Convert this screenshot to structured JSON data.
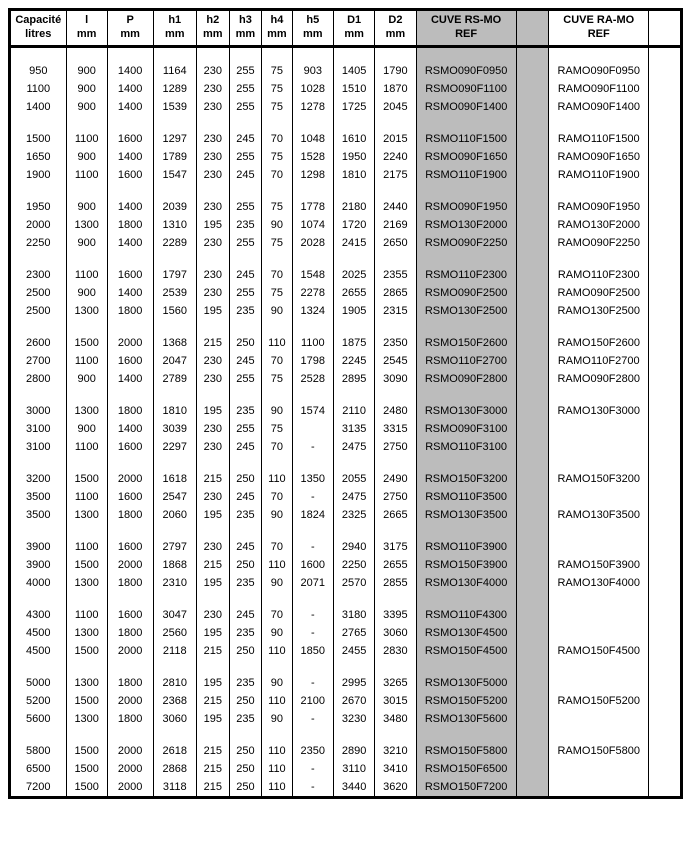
{
  "headers": [
    {
      "l1": "Capacité",
      "l2": "litres"
    },
    {
      "l1": "l",
      "l2": "mm"
    },
    {
      "l1": "P",
      "l2": "mm"
    },
    {
      "l1": "h1",
      "l2": "mm"
    },
    {
      "l1": "h2",
      "l2": "mm"
    },
    {
      "l1": "h3",
      "l2": "mm"
    },
    {
      "l1": "h4",
      "l2": "mm"
    },
    {
      "l1": "h5",
      "l2": "mm"
    },
    {
      "l1": "D1",
      "l2": "mm"
    },
    {
      "l1": "D2",
      "l2": "mm"
    },
    {
      "l1": "CUVE RS-MO",
      "l2": "REF"
    },
    {
      "l1": "",
      "l2": ""
    },
    {
      "l1": "CUVE RA-MO",
      "l2": "REF"
    },
    {
      "l1": "",
      "l2": ""
    }
  ],
  "groups": [
    [
      [
        "950",
        "900",
        "1400",
        "1164",
        "230",
        "255",
        "75",
        "903",
        "1405",
        "1790",
        "RSMO090F0950",
        "",
        "RAMO090F0950",
        ""
      ],
      [
        "1100",
        "900",
        "1400",
        "1289",
        "230",
        "255",
        "75",
        "1028",
        "1510",
        "1870",
        "RSMO090F1100",
        "",
        "RAMO090F1100",
        ""
      ],
      [
        "1400",
        "900",
        "1400",
        "1539",
        "230",
        "255",
        "75",
        "1278",
        "1725",
        "2045",
        "RSMO090F1400",
        "",
        "RAMO090F1400",
        ""
      ]
    ],
    [
      [
        "1500",
        "1100",
        "1600",
        "1297",
        "230",
        "245",
        "70",
        "1048",
        "1610",
        "2015",
        "RSMO110F1500",
        "",
        "RAMO110F1500",
        ""
      ],
      [
        "1650",
        "900",
        "1400",
        "1789",
        "230",
        "255",
        "75",
        "1528",
        "1950",
        "2240",
        "RSMO090F1650",
        "",
        "RAMO090F1650",
        ""
      ],
      [
        "1900",
        "1100",
        "1600",
        "1547",
        "230",
        "245",
        "70",
        "1298",
        "1810",
        "2175",
        "RSMO110F1900",
        "",
        "RAMO110F1900",
        ""
      ]
    ],
    [
      [
        "1950",
        "900",
        "1400",
        "2039",
        "230",
        "255",
        "75",
        "1778",
        "2180",
        "2440",
        "RSMO090F1950",
        "",
        "RAMO090F1950",
        ""
      ],
      [
        "2000",
        "1300",
        "1800",
        "1310",
        "195",
        "235",
        "90",
        "1074",
        "1720",
        "2169",
        "RSMO130F2000",
        "",
        "RAMO130F2000",
        ""
      ],
      [
        "2250",
        "900",
        "1400",
        "2289",
        "230",
        "255",
        "75",
        "2028",
        "2415",
        "2650",
        "RSMO090F2250",
        "",
        "RAMO090F2250",
        ""
      ]
    ],
    [
      [
        "2300",
        "1100",
        "1600",
        "1797",
        "230",
        "245",
        "70",
        "1548",
        "2025",
        "2355",
        "RSMO110F2300",
        "",
        "RAMO110F2300",
        ""
      ],
      [
        "2500",
        "900",
        "1400",
        "2539",
        "230",
        "255",
        "75",
        "2278",
        "2655",
        "2865",
        "RSMO090F2500",
        "",
        "RAMO090F2500",
        ""
      ],
      [
        "2500",
        "1300",
        "1800",
        "1560",
        "195",
        "235",
        "90",
        "1324",
        "1905",
        "2315",
        "RSMO130F2500",
        "",
        "RAMO130F2500",
        ""
      ]
    ],
    [
      [
        "2600",
        "1500",
        "2000",
        "1368",
        "215",
        "250",
        "110",
        "1100",
        "1875",
        "2350",
        "RSMO150F2600",
        "",
        "RAMO150F2600",
        ""
      ],
      [
        "2700",
        "1100",
        "1600",
        "2047",
        "230",
        "245",
        "70",
        "1798",
        "2245",
        "2545",
        "RSMO110F2700",
        "",
        "RAMO110F2700",
        ""
      ],
      [
        "2800",
        "900",
        "1400",
        "2789",
        "230",
        "255",
        "75",
        "2528",
        "2895",
        "3090",
        "RSMO090F2800",
        "",
        "RAMO090F2800",
        ""
      ]
    ],
    [
      [
        "3000",
        "1300",
        "1800",
        "1810",
        "195",
        "235",
        "90",
        "1574",
        "2110",
        "2480",
        "RSMO130F3000",
        "",
        "RAMO130F3000",
        ""
      ],
      [
        "3100",
        "900",
        "1400",
        "3039",
        "230",
        "255",
        "75",
        "",
        "3135",
        "3315",
        "RSMO090F3100",
        "",
        "",
        ""
      ],
      [
        "3100",
        "1100",
        "1600",
        "2297",
        "230",
        "245",
        "70",
        "-",
        "2475",
        "2750",
        "RSMO110F3100",
        "",
        "",
        ""
      ]
    ],
    [
      [
        "3200",
        "1500",
        "2000",
        "1618",
        "215",
        "250",
        "110",
        "1350",
        "2055",
        "2490",
        "RSMO150F3200",
        "",
        "RAMO150F3200",
        ""
      ],
      [
        "3500",
        "1100",
        "1600",
        "2547",
        "230",
        "245",
        "70",
        "-",
        "2475",
        "2750",
        "RSMO110F3500",
        "",
        "",
        ""
      ],
      [
        "3500",
        "1300",
        "1800",
        "2060",
        "195",
        "235",
        "90",
        "1824",
        "2325",
        "2665",
        "RSMO130F3500",
        "",
        "RAMO130F3500",
        ""
      ]
    ],
    [
      [
        "3900",
        "1100",
        "1600",
        "2797",
        "230",
        "245",
        "70",
        "-",
        "2940",
        "3175",
        "RSMO110F3900",
        "",
        "",
        ""
      ],
      [
        "3900",
        "1500",
        "2000",
        "1868",
        "215",
        "250",
        "110",
        "1600",
        "2250",
        "2655",
        "RSMO150F3900",
        "",
        "RAMO150F3900",
        ""
      ],
      [
        "4000",
        "1300",
        "1800",
        "2310",
        "195",
        "235",
        "90",
        "2071",
        "2570",
        "2855",
        "RSMO130F4000",
        "",
        "RAMO130F4000",
        ""
      ]
    ],
    [
      [
        "4300",
        "1100",
        "1600",
        "3047",
        "230",
        "245",
        "70",
        "-",
        "3180",
        "3395",
        "RSMO110F4300",
        "",
        "",
        ""
      ],
      [
        "4500",
        "1300",
        "1800",
        "2560",
        "195",
        "235",
        "90",
        "-",
        "2765",
        "3060",
        "RSMO130F4500",
        "",
        "",
        ""
      ],
      [
        "4500",
        "1500",
        "2000",
        "2118",
        "215",
        "250",
        "110",
        "1850",
        "2455",
        "2830",
        "RSMO150F4500",
        "",
        "RAMO150F4500",
        ""
      ]
    ],
    [
      [
        "5000",
        "1300",
        "1800",
        "2810",
        "195",
        "235",
        "90",
        "-",
        "2995",
        "3265",
        "RSMO130F5000",
        "",
        "",
        ""
      ],
      [
        "5200",
        "1500",
        "2000",
        "2368",
        "215",
        "250",
        "110",
        "2100",
        "2670",
        "3015",
        "RSMO150F5200",
        "",
        "RAMO150F5200",
        ""
      ],
      [
        "5600",
        "1300",
        "1800",
        "3060",
        "195",
        "235",
        "90",
        "-",
        "3230",
        "3480",
        "RSMO130F5600",
        "",
        "",
        ""
      ]
    ],
    [
      [
        "5800",
        "1500",
        "2000",
        "2618",
        "215",
        "250",
        "110",
        "2350",
        "2890",
        "3210",
        "RSMO150F5800",
        "",
        "RAMO150F5800",
        ""
      ],
      [
        "6500",
        "1500",
        "2000",
        "2868",
        "215",
        "250",
        "110",
        "-",
        "3110",
        "3410",
        "RSMO150F6500",
        "",
        "",
        ""
      ],
      [
        "7200",
        "1500",
        "2000",
        "3118",
        "215",
        "250",
        "110",
        "-",
        "3440",
        "3620",
        "RSMO150F7200",
        "",
        "",
        ""
      ]
    ]
  ],
  "refColumns": [
    10,
    11
  ],
  "colCount": 14
}
